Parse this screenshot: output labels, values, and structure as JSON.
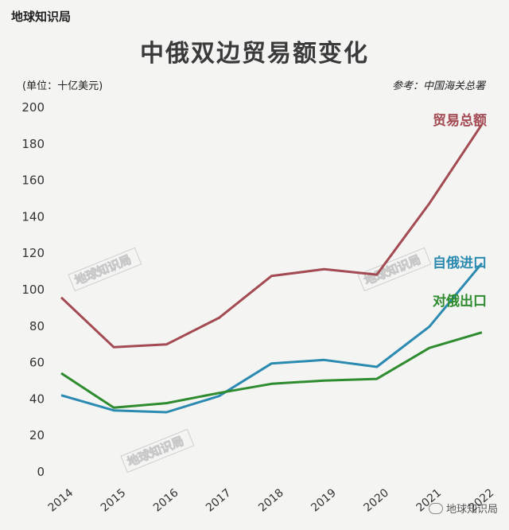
{
  "brand": "地球知识局",
  "footer_brand": "地球知识局",
  "watermark": "地球知识局",
  "chart_data": {
    "type": "line",
    "title": "中俄双边贸易额变化",
    "unit_label": "(单位：十亿美元)",
    "source_note": "参考：中国海关总署",
    "x": [
      "2014",
      "2015",
      "2016",
      "2017",
      "2018",
      "2019",
      "2020",
      "2021",
      "2022"
    ],
    "ylim": [
      0,
      200
    ],
    "yticks": [
      0,
      20,
      40,
      60,
      80,
      100,
      120,
      140,
      160,
      180,
      200
    ],
    "grid": false,
    "series": [
      {
        "name": "贸易总额",
        "color": "#a34a52",
        "values": [
          95.3,
          68.0,
          69.5,
          84.1,
          107.1,
          110.8,
          107.8,
          146.9,
          190.3
        ]
      },
      {
        "name": "自俄进口",
        "color": "#2b8ab0",
        "values": [
          41.6,
          33.3,
          32.3,
          41.2,
          59.1,
          61.0,
          57.2,
          79.3,
          114.1
        ]
      },
      {
        "name": "对俄出口",
        "color": "#2e8b2e",
        "values": [
          53.7,
          34.8,
          37.3,
          42.9,
          47.9,
          49.7,
          50.6,
          67.6,
          76.1
        ]
      }
    ]
  }
}
